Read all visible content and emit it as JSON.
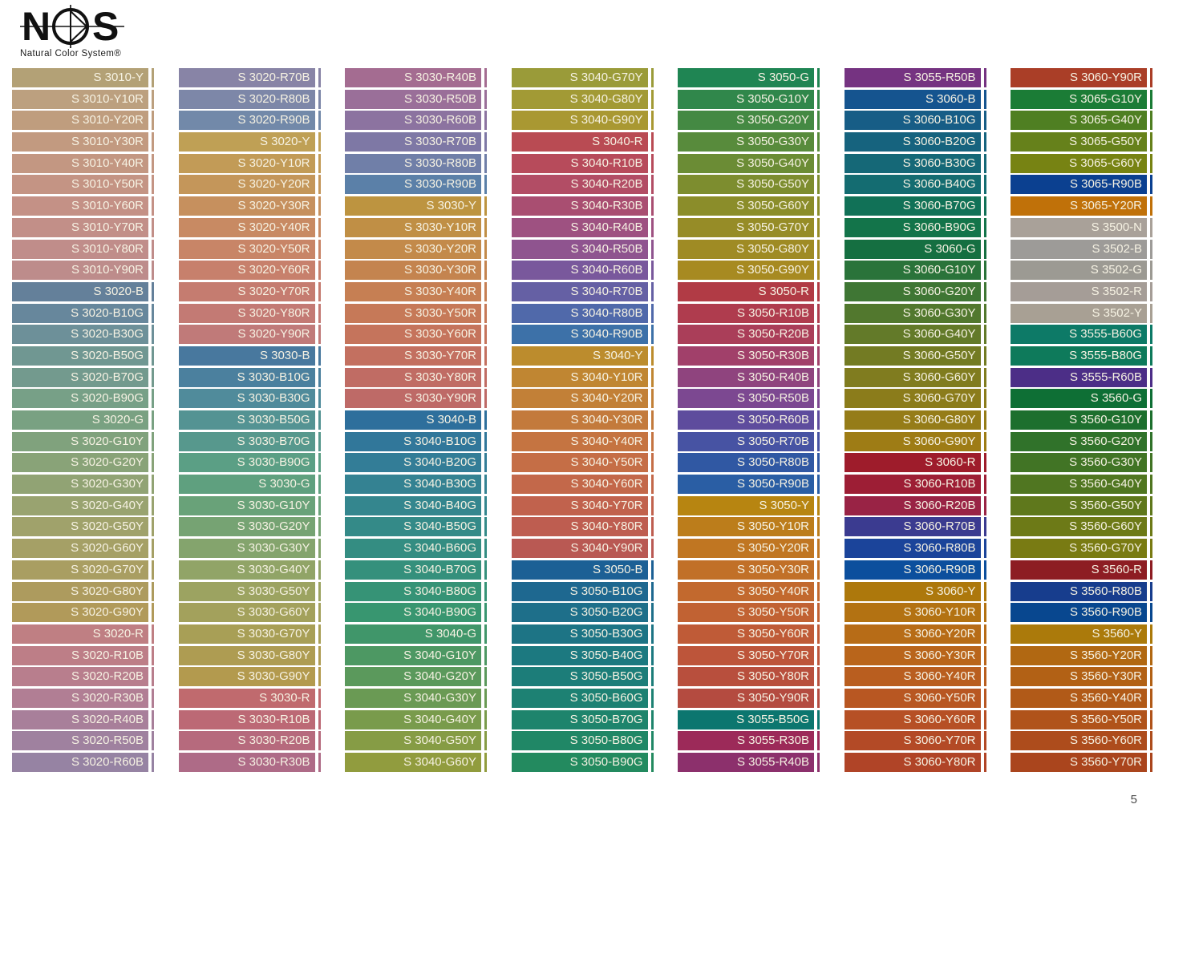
{
  "logo": {
    "brand": "NCS",
    "subtitle": "Natural Color System®"
  },
  "page_number": "5",
  "label_text_color": "#f6f2e3",
  "columns": [
    {
      "swatches": [
        {
          "label": "S 3010-Y",
          "color": "#b3a176"
        },
        {
          "label": "S 3010-Y10R",
          "color": "#bca07f"
        },
        {
          "label": "S 3010-Y20R",
          "color": "#bf9d7e"
        },
        {
          "label": "S 3010-Y30R",
          "color": "#c29a80"
        },
        {
          "label": "S 3010-Y40R",
          "color": "#c39782"
        },
        {
          "label": "S 3010-Y50R",
          "color": "#c49484"
        },
        {
          "label": "S 3010-Y60R",
          "color": "#c49186"
        },
        {
          "label": "S 3010-Y70R",
          "color": "#c28f88"
        },
        {
          "label": "S 3010-Y80R",
          "color": "#c08d8a"
        },
        {
          "label": "S 3010-Y90R",
          "color": "#bd8c8b"
        },
        {
          "label": "S 3020-B",
          "color": "#64809a"
        },
        {
          "label": "S 3020-B10G",
          "color": "#67879c"
        },
        {
          "label": "S 3020-B30G",
          "color": "#6d9099"
        },
        {
          "label": "S 3020-B50G",
          "color": "#709792"
        },
        {
          "label": "S 3020-B70G",
          "color": "#739a8e"
        },
        {
          "label": "S 3020-B90G",
          "color": "#77a087"
        },
        {
          "label": "S 3020-G",
          "color": "#79a182"
        },
        {
          "label": "S 3020-G10Y",
          "color": "#80a27d"
        },
        {
          "label": "S 3020-G20Y",
          "color": "#89a378"
        },
        {
          "label": "S 3020-G30Y",
          "color": "#91a374"
        },
        {
          "label": "S 3020-G40Y",
          "color": "#99a370"
        },
        {
          "label": "S 3020-G50Y",
          "color": "#a0a26b"
        },
        {
          "label": "S 3020-G60Y",
          "color": "#a5a066"
        },
        {
          "label": "S 3020-G70Y",
          "color": "#a99e62"
        },
        {
          "label": "S 3020-G80Y",
          "color": "#ad9b5e"
        },
        {
          "label": "S 3020-G90Y",
          "color": "#b19a5a"
        },
        {
          "label": "S 3020-R",
          "color": "#bf7f83"
        },
        {
          "label": "S 3020-R10B",
          "color": "#bd7e87"
        },
        {
          "label": "S 3020-R20B",
          "color": "#b87e8d"
        },
        {
          "label": "S 3020-R30B",
          "color": "#b17e94"
        },
        {
          "label": "S 3020-R40B",
          "color": "#a87f9a"
        },
        {
          "label": "S 3020-R50B",
          "color": "#9f819f"
        },
        {
          "label": "S 3020-R60B",
          "color": "#9683a3"
        }
      ]
    },
    {
      "swatches": [
        {
          "label": "S 3020-R70B",
          "color": "#8884a6"
        },
        {
          "label": "S 3020-R80B",
          "color": "#7d87a8"
        },
        {
          "label": "S 3020-R90B",
          "color": "#7289a9"
        },
        {
          "label": "S 3020-Y",
          "color": "#bfa055"
        },
        {
          "label": "S 3020-Y10R",
          "color": "#c29b57"
        },
        {
          "label": "S 3020-Y20R",
          "color": "#c4965a"
        },
        {
          "label": "S 3020-Y30R",
          "color": "#c6905e"
        },
        {
          "label": "S 3020-Y40R",
          "color": "#c88a63"
        },
        {
          "label": "S 3020-Y50R",
          "color": "#c88567"
        },
        {
          "label": "S 3020-Y60R",
          "color": "#c7806c"
        },
        {
          "label": "S 3020-Y70R",
          "color": "#c57c70"
        },
        {
          "label": "S 3020-Y80R",
          "color": "#c37a74"
        },
        {
          "label": "S 3020-Y90R",
          "color": "#c07a79"
        },
        {
          "label": "S 3030-B",
          "color": "#48789e"
        },
        {
          "label": "S 3030-B10G",
          "color": "#4b809e"
        },
        {
          "label": "S 3030-B30G",
          "color": "#508b9b"
        },
        {
          "label": "S 3030-B50G",
          "color": "#549393"
        },
        {
          "label": "S 3030-B70G",
          "color": "#57988d"
        },
        {
          "label": "S 3030-B90G",
          "color": "#5b9f85"
        },
        {
          "label": "S 3030-G",
          "color": "#5fa07f"
        },
        {
          "label": "S 3030-G10Y",
          "color": "#69a279"
        },
        {
          "label": "S 3030-G20Y",
          "color": "#76a373"
        },
        {
          "label": "S 3030-G30Y",
          "color": "#84a46d"
        },
        {
          "label": "S 3030-G40Y",
          "color": "#91a467"
        },
        {
          "label": "S 3030-G50Y",
          "color": "#9ca361"
        },
        {
          "label": "S 3030-G60Y",
          "color": "#a3a15c"
        },
        {
          "label": "S 3030-G70Y",
          "color": "#a89f56"
        },
        {
          "label": "S 3030-G80Y",
          "color": "#ae9c52"
        },
        {
          "label": "S 3030-G90Y",
          "color": "#b39a4e"
        },
        {
          "label": "S 3030-R",
          "color": "#c06a6e"
        },
        {
          "label": "S 3030-R10B",
          "color": "#bc6975"
        },
        {
          "label": "S 3030-R20B",
          "color": "#b66a7d"
        },
        {
          "label": "S 3030-R30B",
          "color": "#ae6b87"
        }
      ]
    },
    {
      "swatches": [
        {
          "label": "S 3030-R40B",
          "color": "#a46c91"
        },
        {
          "label": "S 3030-R50B",
          "color": "#9a6f99"
        },
        {
          "label": "S 3030-R60B",
          "color": "#8c73a0"
        },
        {
          "label": "S 3030-R70B",
          "color": "#7e78a5"
        },
        {
          "label": "S 3030-R80B",
          "color": "#707fa8"
        },
        {
          "label": "S 3030-R90B",
          "color": "#5b80a8"
        },
        {
          "label": "S 3030-Y",
          "color": "#bd9440"
        },
        {
          "label": "S 3030-Y10R",
          "color": "#c08f45"
        },
        {
          "label": "S 3030-Y20R",
          "color": "#c38a4a"
        },
        {
          "label": "S 3030-Y30R",
          "color": "#c4844f"
        },
        {
          "label": "S 3030-Y40R",
          "color": "#c67f53"
        },
        {
          "label": "S 3030-Y50R",
          "color": "#c67958"
        },
        {
          "label": "S 3030-Y60R",
          "color": "#c5745c"
        },
        {
          "label": "S 3030-Y70R",
          "color": "#c37060"
        },
        {
          "label": "S 3030-Y80R",
          "color": "#c06c64"
        },
        {
          "label": "S 3030-Y90R",
          "color": "#be6a67"
        },
        {
          "label": "S 3040-B",
          "color": "#2e6f9c"
        },
        {
          "label": "S 3040-B10G",
          "color": "#31779a"
        },
        {
          "label": "S 3040-B20G",
          "color": "#337d97"
        },
        {
          "label": "S 3040-B30G",
          "color": "#348292"
        },
        {
          "label": "S 3040-B40G",
          "color": "#34868e"
        },
        {
          "label": "S 3040-B50G",
          "color": "#348a88"
        },
        {
          "label": "S 3040-B60G",
          "color": "#348d82"
        },
        {
          "label": "S 3040-B70G",
          "color": "#35907c"
        },
        {
          "label": "S 3040-B80G",
          "color": "#369376"
        },
        {
          "label": "S 3040-B90G",
          "color": "#389670"
        },
        {
          "label": "S 3040-G",
          "color": "#40966a"
        },
        {
          "label": "S 3040-G10Y",
          "color": "#4d9863"
        },
        {
          "label": "S 3040-G20Y",
          "color": "#5b995c"
        },
        {
          "label": "S 3040-G30Y",
          "color": "#6a9a54"
        },
        {
          "label": "S 3040-G40Y",
          "color": "#799b4c"
        },
        {
          "label": "S 3040-G50Y",
          "color": "#869c45"
        },
        {
          "label": "S 3040-G60Y",
          "color": "#919c3e"
        }
      ]
    },
    {
      "swatches": [
        {
          "label": "S 3040-G70Y",
          "color": "#9a9b39"
        },
        {
          "label": "S 3040-G80Y",
          "color": "#a29a35"
        },
        {
          "label": "S 3040-G90Y",
          "color": "#a99832"
        },
        {
          "label": "S 3040-R",
          "color": "#b94b53"
        },
        {
          "label": "S 3040-R10B",
          "color": "#b74b5b"
        },
        {
          "label": "S 3040-R20B",
          "color": "#b24d65"
        },
        {
          "label": "S 3040-R30B",
          "color": "#a94e71"
        },
        {
          "label": "S 3040-R40B",
          "color": "#9e5181"
        },
        {
          "label": "S 3040-R50B",
          "color": "#8f548f"
        },
        {
          "label": "S 3040-R60B",
          "color": "#79589c"
        },
        {
          "label": "S 3040-R70B",
          "color": "#6560a4"
        },
        {
          "label": "S 3040-R80B",
          "color": "#5069aa"
        },
        {
          "label": "S 3040-R90B",
          "color": "#3d71a8"
        },
        {
          "label": "S 3040-Y",
          "color": "#bc8c2d"
        },
        {
          "label": "S 3040-Y10R",
          "color": "#c08632"
        },
        {
          "label": "S 3040-Y20R",
          "color": "#c28037"
        },
        {
          "label": "S 3040-Y30R",
          "color": "#c37a3c"
        },
        {
          "label": "S 3040-Y40R",
          "color": "#c57441"
        },
        {
          "label": "S 3040-Y50R",
          "color": "#c56e46"
        },
        {
          "label": "S 3040-Y60R",
          "color": "#c3684a"
        },
        {
          "label": "S 3040-Y70R",
          "color": "#c1624d"
        },
        {
          "label": "S 3040-Y80R",
          "color": "#be5d50"
        },
        {
          "label": "S 3040-Y90R",
          "color": "#b95953"
        },
        {
          "label": "S 3050-B",
          "color": "#1c6095"
        },
        {
          "label": "S 3050-B10G",
          "color": "#1e6890"
        },
        {
          "label": "S 3050-B20G",
          "color": "#1e6f8a"
        },
        {
          "label": "S 3050-B30G",
          "color": "#1d7485"
        },
        {
          "label": "S 3050-B40G",
          "color": "#1c7980"
        },
        {
          "label": "S 3050-B50G",
          "color": "#1c7d79"
        },
        {
          "label": "S 3050-B60G",
          "color": "#1d8173"
        },
        {
          "label": "S 3050-B70G",
          "color": "#1e846c"
        },
        {
          "label": "S 3050-B80G",
          "color": "#208766"
        },
        {
          "label": "S 3050-B90G",
          "color": "#238a5f"
        }
      ]
    },
    {
      "swatches": [
        {
          "label": "S 3050-G",
          "color": "#1f8553"
        },
        {
          "label": "S 3050-G10Y",
          "color": "#30874b"
        },
        {
          "label": "S 3050-G20Y",
          "color": "#448943"
        },
        {
          "label": "S 3050-G30Y",
          "color": "#588b3c"
        },
        {
          "label": "S 3050-G40Y",
          "color": "#6b8c35"
        },
        {
          "label": "S 3050-G50Y",
          "color": "#7d8d2f"
        },
        {
          "label": "S 3050-G60Y",
          "color": "#8b8d2a"
        },
        {
          "label": "S 3050-G70Y",
          "color": "#968c27"
        },
        {
          "label": "S 3050-G80Y",
          "color": "#9f8b24"
        },
        {
          "label": "S 3050-G90Y",
          "color": "#a78a21"
        },
        {
          "label": "S 3050-R",
          "color": "#b13b45"
        },
        {
          "label": "S 3050-R10B",
          "color": "#af3c4e"
        },
        {
          "label": "S 3050-R20B",
          "color": "#aa3e59"
        },
        {
          "label": "S 3050-R30B",
          "color": "#a1406a"
        },
        {
          "label": "S 3050-R40B",
          "color": "#8f447e"
        },
        {
          "label": "S 3050-R50B",
          "color": "#7c4891"
        },
        {
          "label": "S 3050-R60B",
          "color": "#5e4c9d"
        },
        {
          "label": "S 3050-R70B",
          "color": "#4753a3"
        },
        {
          "label": "S 3050-R80B",
          "color": "#3058a3"
        },
        {
          "label": "S 3050-R90B",
          "color": "#2a5ea4"
        },
        {
          "label": "S 3050-Y",
          "color": "#b78511"
        },
        {
          "label": "S 3050-Y10R",
          "color": "#bc7d1b"
        },
        {
          "label": "S 3050-Y20R",
          "color": "#c07622"
        },
        {
          "label": "S 3050-Y30R",
          "color": "#c17028"
        },
        {
          "label": "S 3050-Y40R",
          "color": "#c2692e"
        },
        {
          "label": "S 3050-Y50R",
          "color": "#c16233"
        },
        {
          "label": "S 3050-Y60R",
          "color": "#bf5b37"
        },
        {
          "label": "S 3050-Y70R",
          "color": "#bd553a"
        },
        {
          "label": "S 3050-Y80R",
          "color": "#b84f3d"
        },
        {
          "label": "S 3050-Y90R",
          "color": "#b44b40"
        },
        {
          "label": "S 3055-B50G",
          "color": "#0c766f"
        },
        {
          "label": "S 3055-R30B",
          "color": "#9c2a59"
        },
        {
          "label": "S 3055-R40B",
          "color": "#8c306c"
        }
      ]
    },
    {
      "swatches": [
        {
          "label": "S 3055-R50B",
          "color": "#753381"
        },
        {
          "label": "S 3060-B",
          "color": "#15548f"
        },
        {
          "label": "S 3060-B10G",
          "color": "#175d86"
        },
        {
          "label": "S 3060-B20G",
          "color": "#16637e"
        },
        {
          "label": "S 3060-B30G",
          "color": "#156877"
        },
        {
          "label": "S 3060-B40G",
          "color": "#146c71"
        },
        {
          "label": "S 3060-B70G",
          "color": "#117157"
        },
        {
          "label": "S 3060-B90G",
          "color": "#13744a"
        },
        {
          "label": "S 3060-G",
          "color": "#156f41"
        },
        {
          "label": "S 3060-G10Y",
          "color": "#2a733a"
        },
        {
          "label": "S 3060-G20Y",
          "color": "#3f7634"
        },
        {
          "label": "S 3060-G30Y",
          "color": "#52782e"
        },
        {
          "label": "S 3060-G40Y",
          "color": "#637a29"
        },
        {
          "label": "S 3060-G50Y",
          "color": "#737b23"
        },
        {
          "label": "S 3060-G60Y",
          "color": "#807c1f"
        },
        {
          "label": "S 3060-G70Y",
          "color": "#8b7c1b"
        },
        {
          "label": "S 3060-G80Y",
          "color": "#957c18"
        },
        {
          "label": "S 3060-G90Y",
          "color": "#9e7c15"
        },
        {
          "label": "S 3060-R",
          "color": "#9e1c2b"
        },
        {
          "label": "S 3060-R10B",
          "color": "#9d1e35"
        },
        {
          "label": "S 3060-R20B",
          "color": "#992345"
        },
        {
          "label": "S 3060-R70B",
          "color": "#3b3b90"
        },
        {
          "label": "S 3060-R80B",
          "color": "#1b449a"
        },
        {
          "label": "S 3060-R90B",
          "color": "#0c4f9d"
        },
        {
          "label": "S 3060-Y",
          "color": "#ad780c"
        },
        {
          "label": "S 3060-Y10R",
          "color": "#b37212"
        },
        {
          "label": "S 3060-Y20R",
          "color": "#b76c17"
        },
        {
          "label": "S 3060-Y30R",
          "color": "#b9651b"
        },
        {
          "label": "S 3060-Y40R",
          "color": "#b95e1f"
        },
        {
          "label": "S 3060-Y50R",
          "color": "#b85722"
        },
        {
          "label": "S 3060-Y60R",
          "color": "#b65025"
        },
        {
          "label": "S 3060-Y70R",
          "color": "#b34a26"
        },
        {
          "label": "S 3060-Y80R",
          "color": "#b04427"
        }
      ]
    },
    {
      "swatches": [
        {
          "label": "S 3060-Y90R",
          "color": "#aa3e27"
        },
        {
          "label": "S 3065-G10Y",
          "color": "#1b7c36"
        },
        {
          "label": "S 3065-G40Y",
          "color": "#4f7f22"
        },
        {
          "label": "S 3065-G50Y",
          "color": "#66811b"
        },
        {
          "label": "S 3065-G60Y",
          "color": "#778313"
        },
        {
          "label": "S 3065-R90B",
          "color": "#0b4090"
        },
        {
          "label": "S 3065-Y20R",
          "color": "#c07109"
        },
        {
          "label": "S 3500-N",
          "color": "#a9a199"
        },
        {
          "label": "S 3502-B",
          "color": "#9d9b98"
        },
        {
          "label": "S 3502-G",
          "color": "#9c9a93"
        },
        {
          "label": "S 3502-R",
          "color": "#a59d97"
        },
        {
          "label": "S 3502-Y",
          "color": "#a8a094"
        },
        {
          "label": "S 3555-B60G",
          "color": "#0d7a67"
        },
        {
          "label": "S 3555-B80G",
          "color": "#0e7a5b"
        },
        {
          "label": "S 3555-R60B",
          "color": "#4c2e87"
        },
        {
          "label": "S 3560-G",
          "color": "#0e6f35"
        },
        {
          "label": "S 3560-G10Y",
          "color": "#1d6f2e"
        },
        {
          "label": "S 3560-G20Y",
          "color": "#30722a"
        },
        {
          "label": "S 3560-G30Y",
          "color": "#417425"
        },
        {
          "label": "S 3560-G40Y",
          "color": "#507621"
        },
        {
          "label": "S 3560-G50Y",
          "color": "#5f781c"
        },
        {
          "label": "S 3560-G60Y",
          "color": "#6d7a17"
        },
        {
          "label": "S 3560-G70Y",
          "color": "#797b13"
        },
        {
          "label": "S 3560-R",
          "color": "#8d1d23"
        },
        {
          "label": "S 3560-R80B",
          "color": "#173d8d"
        },
        {
          "label": "S 3560-R90B",
          "color": "#08478f"
        },
        {
          "label": "S 3560-Y",
          "color": "#ab7a0b"
        },
        {
          "label": "S 3560-Y20R",
          "color": "#b16812"
        },
        {
          "label": "S 3560-Y30R",
          "color": "#b26115"
        },
        {
          "label": "S 3560-Y40R",
          "color": "#b15a18"
        },
        {
          "label": "S 3560-Y50R",
          "color": "#b0531a"
        },
        {
          "label": "S 3560-Y60R",
          "color": "#ad4c1c"
        },
        {
          "label": "S 3560-Y70R",
          "color": "#aa451d"
        }
      ]
    }
  ]
}
